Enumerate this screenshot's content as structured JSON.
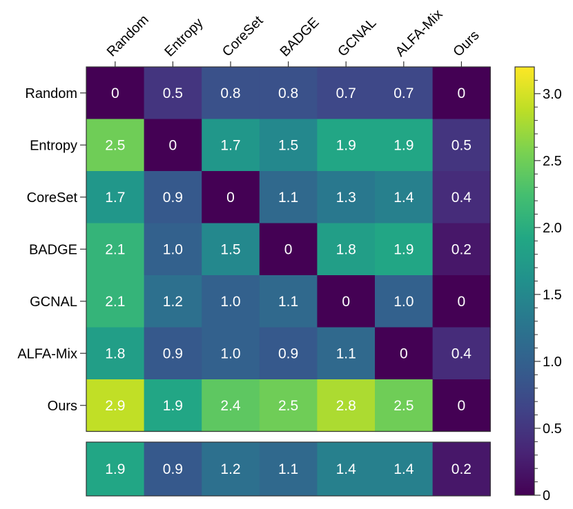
{
  "chart_data": [
    {
      "type": "heatmap",
      "title": "",
      "xlabel": "",
      "ylabel": "",
      "x_categories": [
        "Random",
        "Entropy",
        "CoreSet",
        "BADGE",
        "GCNAL",
        "ALFA-Mix",
        "Ours"
      ],
      "y_categories": [
        "Random",
        "Entropy",
        "CoreSet",
        "BADGE",
        "GCNAL",
        "ALFA-Mix",
        "Ours"
      ],
      "values": [
        [
          0,
          0.5,
          0.8,
          0.8,
          0.7,
          0.7,
          0
        ],
        [
          2.5,
          0,
          1.7,
          1.5,
          1.9,
          1.9,
          0.5
        ],
        [
          1.7,
          0.9,
          0,
          1.1,
          1.3,
          1.4,
          0.4
        ],
        [
          2.1,
          1.0,
          1.5,
          0,
          1.8,
          1.9,
          0.2
        ],
        [
          2.1,
          1.2,
          1.0,
          1.1,
          0,
          1.0,
          0
        ],
        [
          1.8,
          0.9,
          1.0,
          0.9,
          1.1,
          0,
          0.4
        ],
        [
          2.9,
          1.9,
          2.4,
          2.5,
          2.8,
          2.5,
          0
        ]
      ],
      "value_labels": [
        [
          "0",
          "0.5",
          "0.8",
          "0.8",
          "0.7",
          "0.7",
          "0"
        ],
        [
          "2.5",
          "0",
          "1.7",
          "1.5",
          "1.9",
          "1.9",
          "0.5"
        ],
        [
          "1.7",
          "0.9",
          "0",
          "1.1",
          "1.3",
          "1.4",
          "0.4"
        ],
        [
          "2.1",
          "1.0",
          "1.5",
          "0",
          "1.8",
          "1.9",
          "0.2"
        ],
        [
          "2.1",
          "1.2",
          "1.0",
          "1.1",
          "0",
          "1.0",
          "0"
        ],
        [
          "1.8",
          "0.9",
          "1.0",
          "0.9",
          "1.1",
          "0",
          "0.4"
        ],
        [
          "2.9",
          "1.9",
          "2.4",
          "2.5",
          "2.8",
          "2.5",
          "0"
        ]
      ],
      "colorscale": "viridis",
      "vmin": 0,
      "vmax": 3.2
    },
    {
      "type": "heatmap",
      "x_categories": [
        "Random",
        "Entropy",
        "CoreSet",
        "BADGE",
        "GCNAL",
        "ALFA-Mix",
        "Ours"
      ],
      "values": [
        1.9,
        0.9,
        1.2,
        1.1,
        1.4,
        1.4,
        0.2
      ],
      "value_labels": [
        "1.9",
        "0.9",
        "1.2",
        "1.1",
        "1.4",
        "1.4",
        "0.2"
      ],
      "colorscale": "viridis",
      "vmin": 0,
      "vmax": 3.2
    }
  ],
  "colorbar": {
    "min": 0,
    "max": 3.2,
    "ticks": [
      0,
      0.5,
      1.0,
      1.5,
      2.0,
      2.5,
      3.0
    ],
    "tick_labels": [
      "0",
      "0.5",
      "1.0",
      "1.5",
      "2.0",
      "2.5",
      "3.0"
    ],
    "colorscale": "viridis"
  }
}
